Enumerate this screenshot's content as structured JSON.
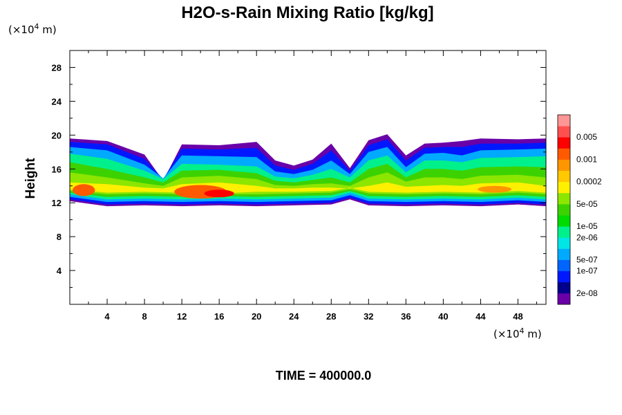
{
  "chart_data": {
    "type": "heatmap",
    "title": "H2O-s-Rain Mixing Ratio [kg/kg]",
    "ylabel": "Height",
    "x_units_label": "(×10",
    "x_units_exp": "4",
    "x_units_suffix": " m)",
    "y_units_label": "(×10",
    "y_units_exp": "4",
    "y_units_suffix": " m)",
    "xlim": [
      0,
      51
    ],
    "ylim": [
      0,
      30
    ],
    "x_ticks": [
      4,
      8,
      12,
      16,
      20,
      24,
      28,
      32,
      36,
      40,
      44,
      48
    ],
    "y_ticks": [
      4,
      8,
      12,
      16,
      20,
      24,
      28
    ],
    "x_ticks_minor": [
      2,
      6,
      10,
      14,
      18,
      22,
      26,
      30,
      34,
      38,
      42,
      46,
      50
    ],
    "y_ticks_minor": [
      2,
      6,
      10,
      14,
      18,
      22,
      26
    ],
    "footer": "TIME = 400000.0",
    "colorbar": {
      "colors": [
        "#6a00a8",
        "#00008c",
        "#0018ff",
        "#0064ff",
        "#00aaff",
        "#00e6e6",
        "#00f08c",
        "#00dc00",
        "#3cd200",
        "#8ce600",
        "#fff000",
        "#ffc800",
        "#ff9600",
        "#ff5a00",
        "#ff0000",
        "#ff5050",
        "#ff9696"
      ],
      "labels": [
        {
          "text": "2e-08",
          "after": 1
        },
        {
          "text": "1e-07",
          "after": 3
        },
        {
          "text": "5e-07",
          "after": 4
        },
        {
          "text": "2e-06",
          "after": 6
        },
        {
          "text": "1e-05",
          "after": 7
        },
        {
          "text": "5e-05",
          "after": 9
        },
        {
          "text": "0.0002",
          "after": 11
        },
        {
          "text": "0.001",
          "after": 13
        },
        {
          "text": "0.005",
          "after": 15
        }
      ]
    },
    "field_layers": [
      {
        "level": "2e-08",
        "color": "#6a00a8",
        "bottom": [
          [
            0,
            12.2
          ],
          [
            4,
            11.6
          ],
          [
            8,
            11.7
          ],
          [
            12,
            11.6
          ],
          [
            16,
            11.7
          ],
          [
            20,
            11.6
          ],
          [
            24,
            11.7
          ],
          [
            28,
            11.8
          ],
          [
            30,
            12.4
          ],
          [
            32,
            11.7
          ],
          [
            36,
            11.6
          ],
          [
            40,
            11.7
          ],
          [
            44,
            11.6
          ],
          [
            48,
            11.8
          ],
          [
            51,
            11.6
          ]
        ],
        "top": [
          [
            0,
            19.6
          ],
          [
            4,
            19.3
          ],
          [
            8,
            17.7
          ],
          [
            10,
            14.6
          ],
          [
            12,
            18.9
          ],
          [
            16,
            18.8
          ],
          [
            20,
            19.2
          ],
          [
            22,
            17.0
          ],
          [
            24,
            16.4
          ],
          [
            26,
            17.1
          ],
          [
            28,
            19.0
          ],
          [
            30,
            16.1
          ],
          [
            32,
            19.4
          ],
          [
            34,
            20.1
          ],
          [
            36,
            17.6
          ],
          [
            38,
            19.0
          ],
          [
            40,
            19.1
          ],
          [
            42,
            19.3
          ],
          [
            44,
            19.6
          ],
          [
            48,
            19.5
          ],
          [
            51,
            19.6
          ]
        ]
      },
      {
        "level": "1e-07",
        "color": "#0018ff",
        "bottom": [
          [
            0,
            12.4
          ],
          [
            4,
            11.8
          ],
          [
            8,
            11.9
          ],
          [
            12,
            11.8
          ],
          [
            16,
            11.9
          ],
          [
            20,
            11.8
          ],
          [
            24,
            11.9
          ],
          [
            28,
            12.0
          ],
          [
            30,
            12.6
          ],
          [
            32,
            11.9
          ],
          [
            36,
            11.8
          ],
          [
            40,
            11.9
          ],
          [
            44,
            11.8
          ],
          [
            48,
            12.0
          ],
          [
            51,
            11.8
          ]
        ],
        "top": [
          [
            0,
            19.2
          ],
          [
            4,
            18.9
          ],
          [
            8,
            17.2
          ],
          [
            10,
            14.8
          ],
          [
            12,
            18.4
          ],
          [
            16,
            18.3
          ],
          [
            20,
            18.5
          ],
          [
            22,
            16.4
          ],
          [
            24,
            15.9
          ],
          [
            26,
            16.6
          ],
          [
            28,
            18.2
          ],
          [
            30,
            15.8
          ],
          [
            32,
            18.8
          ],
          [
            34,
            19.5
          ],
          [
            36,
            17.0
          ],
          [
            38,
            18.5
          ],
          [
            40,
            18.6
          ],
          [
            42,
            18.6
          ],
          [
            44,
            19.0
          ],
          [
            48,
            19.0
          ],
          [
            51,
            19.1
          ]
        ]
      },
      {
        "level": "5e-07",
        "color": "#00aaff",
        "bottom": [
          [
            0,
            12.7
          ],
          [
            4,
            12.1
          ],
          [
            8,
            12.2
          ],
          [
            12,
            12.1
          ],
          [
            16,
            12.2
          ],
          [
            20,
            12.1
          ],
          [
            24,
            12.2
          ],
          [
            28,
            12.3
          ],
          [
            30,
            12.9
          ],
          [
            32,
            12.2
          ],
          [
            36,
            12.1
          ],
          [
            40,
            12.2
          ],
          [
            44,
            12.1
          ],
          [
            48,
            12.3
          ],
          [
            51,
            12.1
          ]
        ],
        "top": [
          [
            0,
            18.6
          ],
          [
            4,
            18.2
          ],
          [
            8,
            16.5
          ],
          [
            10,
            14.9
          ],
          [
            12,
            17.6
          ],
          [
            16,
            17.5
          ],
          [
            20,
            17.4
          ],
          [
            22,
            15.7
          ],
          [
            24,
            15.4
          ],
          [
            26,
            15.9
          ],
          [
            28,
            17.0
          ],
          [
            30,
            15.4
          ],
          [
            32,
            18.0
          ],
          [
            34,
            18.6
          ],
          [
            36,
            16.2
          ],
          [
            38,
            17.8
          ],
          [
            40,
            17.9
          ],
          [
            42,
            17.6
          ],
          [
            44,
            18.2
          ],
          [
            48,
            18.3
          ],
          [
            51,
            18.4
          ]
        ]
      },
      {
        "level": "2e-06",
        "color": "#00f08c",
        "bottom": [
          [
            0,
            13.0
          ],
          [
            4,
            12.4
          ],
          [
            8,
            12.5
          ],
          [
            12,
            12.4
          ],
          [
            16,
            12.5
          ],
          [
            20,
            12.4
          ],
          [
            24,
            12.5
          ],
          [
            28,
            12.6
          ],
          [
            30,
            13.2
          ],
          [
            32,
            12.5
          ],
          [
            36,
            12.4
          ],
          [
            40,
            12.5
          ],
          [
            44,
            12.4
          ],
          [
            48,
            12.6
          ],
          [
            51,
            12.4
          ]
        ],
        "top": [
          [
            0,
            17.8
          ],
          [
            4,
            17.2
          ],
          [
            8,
            15.8
          ],
          [
            10,
            14.8
          ],
          [
            12,
            16.6
          ],
          [
            16,
            16.5
          ],
          [
            20,
            16.3
          ],
          [
            22,
            15.1
          ],
          [
            24,
            14.9
          ],
          [
            26,
            15.3
          ],
          [
            28,
            16.0
          ],
          [
            30,
            15.0
          ],
          [
            32,
            17.0
          ],
          [
            34,
            17.6
          ],
          [
            36,
            15.6
          ],
          [
            38,
            17.0
          ],
          [
            40,
            17.0
          ],
          [
            42,
            16.8
          ],
          [
            44,
            17.3
          ],
          [
            48,
            17.4
          ],
          [
            51,
            17.5
          ]
        ]
      },
      {
        "level": "1e-05",
        "color": "#3cd200",
        "bottom": [
          [
            0,
            13.2
          ],
          [
            4,
            12.7
          ],
          [
            8,
            12.8
          ],
          [
            12,
            12.7
          ],
          [
            16,
            12.8
          ],
          [
            20,
            12.7
          ],
          [
            24,
            12.8
          ],
          [
            28,
            12.9
          ],
          [
            30,
            13.4
          ],
          [
            32,
            12.8
          ],
          [
            36,
            12.7
          ],
          [
            40,
            12.8
          ],
          [
            44,
            12.7
          ],
          [
            48,
            12.9
          ],
          [
            51,
            12.7
          ]
        ],
        "top": [
          [
            0,
            16.8
          ],
          [
            4,
            16.0
          ],
          [
            8,
            15.0
          ],
          [
            10,
            14.4
          ],
          [
            12,
            15.8
          ],
          [
            16,
            15.9
          ],
          [
            20,
            15.5
          ],
          [
            22,
            14.6
          ],
          [
            24,
            14.4
          ],
          [
            26,
            14.7
          ],
          [
            28,
            15.0
          ],
          [
            30,
            14.4
          ],
          [
            32,
            16.0
          ],
          [
            34,
            16.6
          ],
          [
            36,
            15.0
          ],
          [
            38,
            16.0
          ],
          [
            40,
            16.0
          ],
          [
            42,
            15.8
          ],
          [
            44,
            16.2
          ],
          [
            48,
            16.3
          ],
          [
            51,
            16.2
          ]
        ]
      },
      {
        "level": "5e-05",
        "color": "#8ce600",
        "bottom": [
          [
            0,
            13.4
          ],
          [
            4,
            13.0
          ],
          [
            8,
            13.1
          ],
          [
            12,
            13.0
          ],
          [
            16,
            13.0
          ],
          [
            20,
            13.0
          ],
          [
            24,
            13.1
          ],
          [
            28,
            13.2
          ],
          [
            30,
            13.6
          ],
          [
            32,
            13.1
          ],
          [
            36,
            13.0
          ],
          [
            40,
            13.1
          ],
          [
            44,
            13.0
          ],
          [
            48,
            13.2
          ],
          [
            51,
            13.0
          ]
        ],
        "top": [
          [
            0,
            15.6
          ],
          [
            4,
            15.0
          ],
          [
            8,
            14.3
          ],
          [
            10,
            14.0
          ],
          [
            12,
            15.0
          ],
          [
            16,
            15.2
          ],
          [
            20,
            14.8
          ],
          [
            22,
            14.1
          ],
          [
            24,
            14.0
          ],
          [
            26,
            14.2
          ],
          [
            28,
            14.3
          ],
          [
            30,
            14.0
          ],
          [
            32,
            15.0
          ],
          [
            34,
            15.6
          ],
          [
            36,
            14.5
          ],
          [
            38,
            15.0
          ],
          [
            40,
            15.0
          ],
          [
            42,
            14.8
          ],
          [
            44,
            15.2
          ],
          [
            48,
            15.3
          ],
          [
            51,
            15.0
          ]
        ]
      },
      {
        "level": "0.0002",
        "color": "#fff000",
        "bottom": [
          [
            0,
            13.6
          ],
          [
            4,
            13.2
          ],
          [
            8,
            13.3
          ],
          [
            12,
            13.2
          ],
          [
            16,
            13.1
          ],
          [
            20,
            13.3
          ],
          [
            24,
            13.3
          ],
          [
            28,
            13.4
          ],
          [
            30,
            13.8
          ],
          [
            32,
            13.3
          ],
          [
            36,
            13.2
          ],
          [
            40,
            13.3
          ],
          [
            44,
            13.2
          ],
          [
            48,
            13.4
          ],
          [
            51,
            13.2
          ]
        ],
        "top": [
          [
            0,
            14.4
          ],
          [
            4,
            14.2
          ],
          [
            8,
            13.8
          ],
          [
            10,
            13.7
          ],
          [
            12,
            14.2
          ],
          [
            16,
            14.4
          ],
          [
            20,
            14.0
          ],
          [
            22,
            13.7
          ],
          [
            24,
            13.7
          ],
          [
            26,
            13.8
          ],
          [
            28,
            13.8
          ],
          [
            30,
            13.7
          ],
          [
            32,
            14.0
          ],
          [
            34,
            14.4
          ],
          [
            36,
            13.9
          ],
          [
            38,
            14.0
          ],
          [
            40,
            14.1
          ],
          [
            42,
            14.0
          ],
          [
            44,
            14.3
          ],
          [
            48,
            14.4
          ],
          [
            51,
            14.0
          ]
        ]
      }
    ],
    "hotspots": [
      {
        "x": 1.5,
        "y": 13.5,
        "rx": 1.2,
        "ry": 0.7,
        "level": "0.001",
        "color": "#ff5a00"
      },
      {
        "x": 14.0,
        "y": 13.3,
        "rx": 2.8,
        "ry": 0.8,
        "level": "0.001",
        "color": "#ff5a00"
      },
      {
        "x": 16.0,
        "y": 13.1,
        "rx": 1.6,
        "ry": 0.45,
        "level": "0.001",
        "color": "#ff0000"
      },
      {
        "x": 45.5,
        "y": 13.6,
        "rx": 1.8,
        "ry": 0.4,
        "level": "0.001",
        "color": "#ff9600"
      }
    ]
  }
}
